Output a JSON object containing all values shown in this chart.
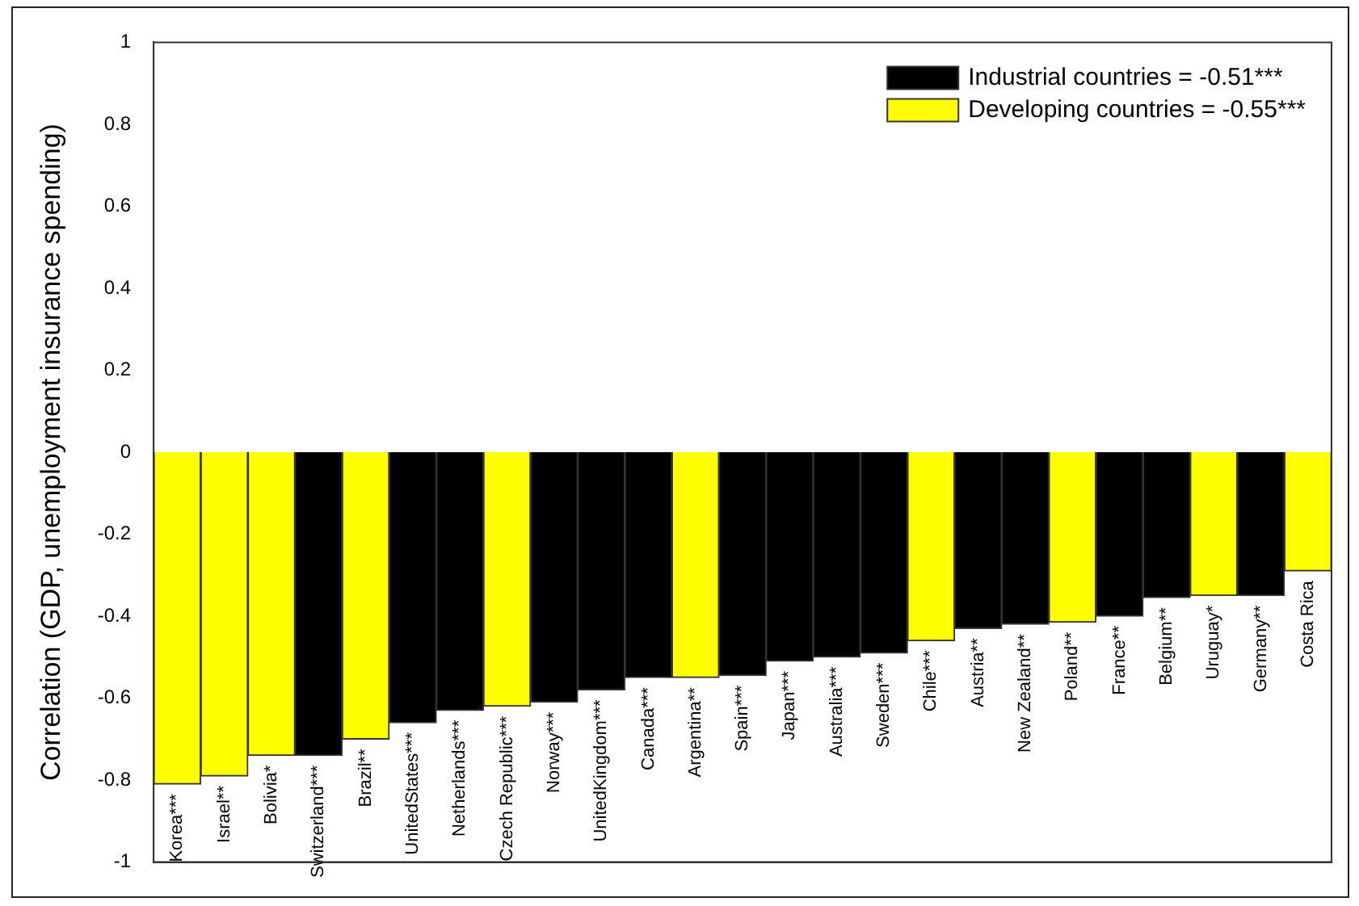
{
  "chart_data": {
    "type": "bar",
    "ylabel": "Correlation (GDP, unemployment insurance spending)",
    "categories": [
      "Korea***",
      "Israel**",
      "Bolivia*",
      "Switzerland***",
      "Brazil**",
      "UnitedStates***",
      "Netherlands***",
      "Czech Republic***",
      "Norway***",
      "UnitedKingdom***",
      "Canada***",
      "Argentina**",
      "Spain***",
      "Japan***",
      "Australia***",
      "Sweden***",
      "Chile***",
      "Austria**",
      "New Zealand**",
      "Poland**",
      "France**",
      "Belgium**",
      "Uruguay*",
      "Germany**",
      "Costa Rica"
    ],
    "series": [
      {
        "name": "Industrial countries = -0.51***",
        "color": "#000000",
        "values": [
          null,
          null,
          null,
          -0.74,
          null,
          -0.66,
          -0.63,
          null,
          -0.61,
          -0.58,
          -0.55,
          null,
          -0.545,
          -0.51,
          -0.5,
          -0.49,
          null,
          -0.43,
          -0.42,
          null,
          -0.4,
          -0.355,
          null,
          -0.35,
          null
        ]
      },
      {
        "name": "Developing countries = -0.55***",
        "color": "#ffff00",
        "values": [
          -0.81,
          -0.79,
          -0.74,
          null,
          -0.7,
          null,
          null,
          -0.62,
          null,
          null,
          null,
          -0.55,
          null,
          null,
          null,
          null,
          -0.46,
          null,
          null,
          -0.415,
          null,
          null,
          -0.35,
          null,
          -0.29
        ]
      }
    ],
    "ylim": [
      -1,
      1
    ],
    "yticks": [
      -1,
      -0.8,
      -0.6,
      -0.4,
      -0.2,
      0,
      0.2,
      0.4,
      0.6,
      0.8,
      1
    ],
    "grid": false,
    "legend": "top right"
  }
}
